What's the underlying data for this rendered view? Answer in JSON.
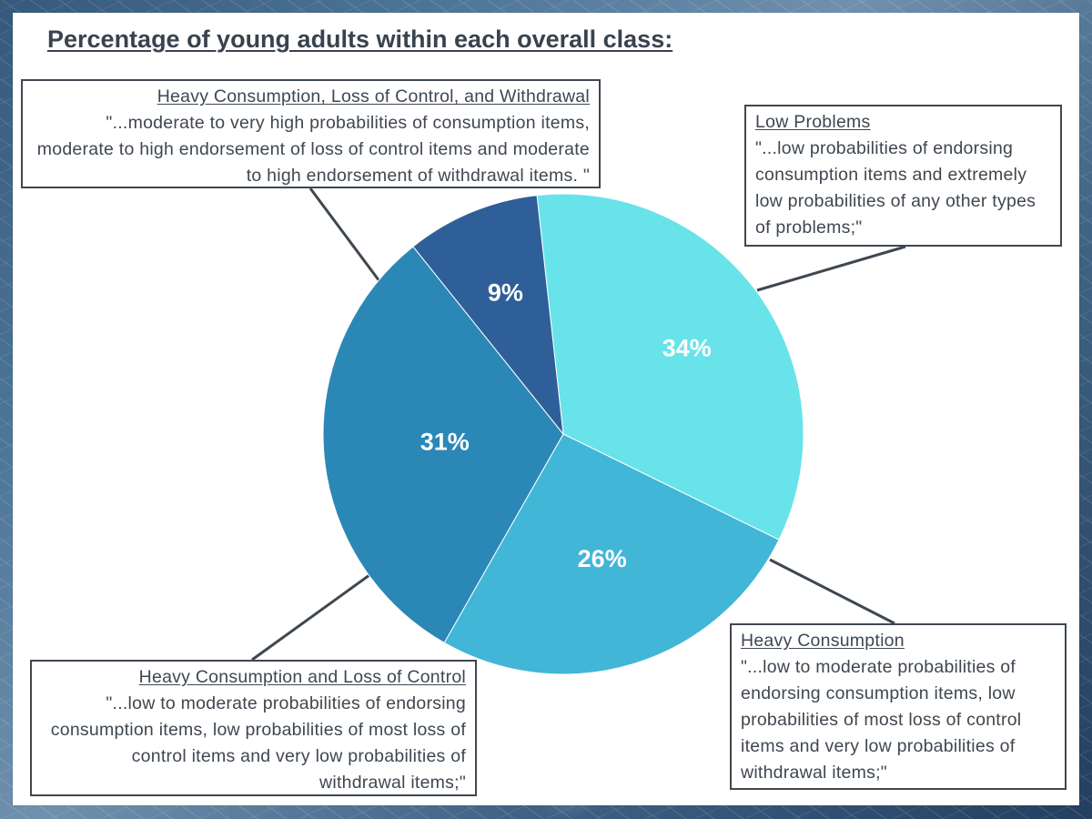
{
  "page": {
    "title": "Percentage of young adults within each overall class:",
    "background_color": "#ffffff",
    "frame_colors": [
      "#35597a",
      "#6f91ae",
      "#243f5f"
    ]
  },
  "callouts": {
    "top_left": {
      "title": "Heavy Consumption, Loss of Control, and Withdrawal",
      "description": "\"...moderate to very high probabilities of consumption items, moderate to high endorsement of loss of control items and moderate to high endorsement of withdrawal items. \""
    },
    "top_right": {
      "title": "Low Problems",
      "description": "\"...low probabilities of endorsing consumption items and extremely low probabilities of any other types of problems;\""
    },
    "bottom_left": {
      "title": "Heavy Consumption and Loss of Control",
      "description": "\"...low to moderate probabilities of endorsing consumption items, low probabilities of most loss of control items and very low probabilities of withdrawal items;\""
    },
    "bottom_right": {
      "title": "Heavy Consumption",
      "description": "\"...low to moderate probabilities of endorsing consumption items, low probabilities of most loss of control items and very low probabilities of withdrawal items;\""
    }
  },
  "chart_data": {
    "type": "pie",
    "title": "Percentage of young adults within each overall class:",
    "categories": [
      "Low Problems",
      "Heavy Consumption",
      "Heavy Consumption and Loss of Control",
      "Heavy Consumption, Loss of Control, and Withdrawal"
    ],
    "values": [
      34,
      26,
      31,
      9
    ],
    "labels": [
      "34%",
      "26%",
      "31%",
      "9%"
    ],
    "colors": [
      "#68e3e9",
      "#42b6d6",
      "#2b87b6",
      "#2f5f99"
    ],
    "label_color": "#ffffff",
    "legend": "callout-boxes",
    "grid": false
  }
}
